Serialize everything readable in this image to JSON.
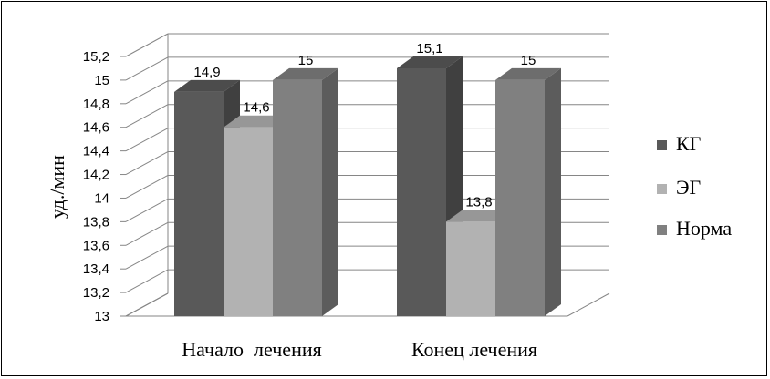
{
  "chart_data": {
    "type": "bar",
    "title": "",
    "xlabel": "",
    "ylabel": "уд./мин",
    "ylim": [
      13,
      15.2
    ],
    "yticks": [
      "13",
      "13,2",
      "13,4",
      "13,6",
      "13,8",
      "14",
      "14,2",
      "14,4",
      "14,6",
      "14,8",
      "15",
      "15,2"
    ],
    "categories": [
      "Начало  лечения",
      "Конец лечения"
    ],
    "series": [
      {
        "name": "КГ",
        "values": [
          14.9,
          15.1
        ],
        "labels": [
          "14,9",
          "15,1"
        ],
        "color": "#595959"
      },
      {
        "name": "ЭГ",
        "values": [
          14.6,
          13.8
        ],
        "labels": [
          "14,6",
          "13,8"
        ],
        "color": "#b2b2b2"
      },
      {
        "name": "Норма",
        "values": [
          15,
          15
        ],
        "labels": [
          "15",
          "15"
        ],
        "color": "#808080"
      }
    ],
    "grid": true,
    "legend": "right",
    "style": "3d-clustered-column"
  }
}
